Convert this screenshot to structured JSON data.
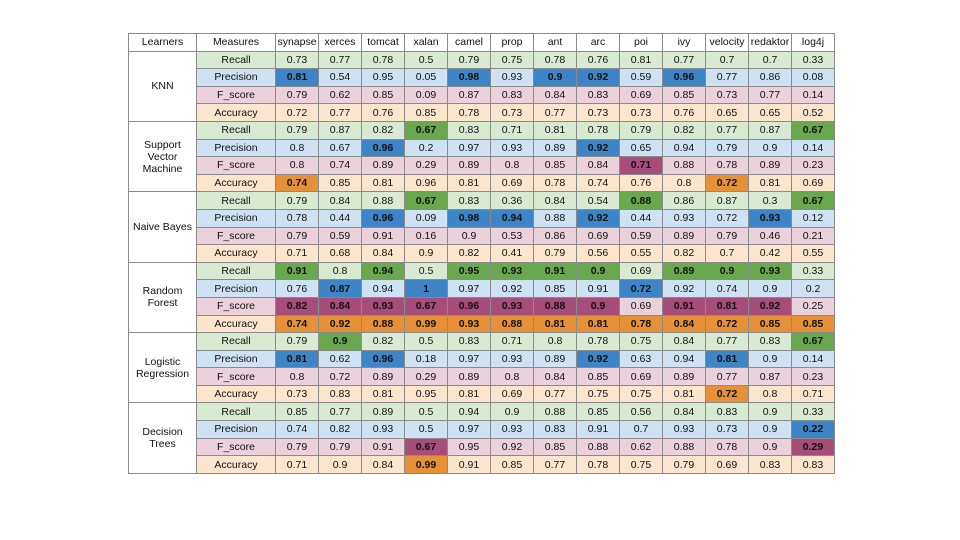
{
  "headers": [
    "Learners",
    "Measures",
    "synapse",
    "xerces",
    "tomcat",
    "xalan",
    "camel",
    "prop",
    "ant",
    "arc",
    "poi",
    "ivy",
    "velocity",
    "redaktor",
    "log4j"
  ],
  "measures": [
    "Recall",
    "Precision",
    "F_score",
    "Accuracy"
  ],
  "row_colors": {
    "Recall": "#d9ead3",
    "Precision": "#cfe2f3",
    "F_score": "#ead1dc",
    "Accuracy": "#fce5cd"
  },
  "highlight_colors": {
    "Recall": "#6aa84f",
    "Precision": "#3d85c6",
    "F_score": "#a64d79",
    "Accuracy": "#e69138"
  },
  "learners": [
    {
      "name": "KNN",
      "rows": [
        {
          "measure": "Recall",
          "values": [
            "0.73",
            "0.77",
            "0.78",
            "0.5",
            "0.79",
            "0.75",
            "0.78",
            "0.76",
            "0.81",
            "0.77",
            "0.7",
            "0.7",
            "0.33"
          ],
          "hl": []
        },
        {
          "measure": "Precision",
          "values": [
            "0.81",
            "0.54",
            "0.95",
            "0.05",
            "0.98",
            "0.93",
            "0.9",
            "0.92",
            "0.59",
            "0.96",
            "0.77",
            "0.86",
            "0.08"
          ],
          "hl": [
            0,
            4,
            6,
            7,
            9
          ]
        },
        {
          "measure": "F_score",
          "values": [
            "0.79",
            "0.62",
            "0.85",
            "0.09",
            "0.87",
            "0.83",
            "0.84",
            "0.83",
            "0.69",
            "0.85",
            "0.73",
            "0.77",
            "0.14"
          ],
          "hl": []
        },
        {
          "measure": "Accuracy",
          "values": [
            "0.72",
            "0.77",
            "0.76",
            "0.85",
            "0.78",
            "0.73",
            "0.77",
            "0.73",
            "0.73",
            "0.76",
            "0.65",
            "0.65",
            "0.52"
          ],
          "hl": []
        }
      ]
    },
    {
      "name": "Support Vector Machine",
      "rows": [
        {
          "measure": "Recall",
          "values": [
            "0.79",
            "0.87",
            "0.82",
            "0.67",
            "0.83",
            "0.71",
            "0.81",
            "0.78",
            "0.79",
            "0.82",
            "0.77",
            "0.87",
            "0.67"
          ],
          "hl": [
            3,
            12
          ]
        },
        {
          "measure": "Precision",
          "values": [
            "0.8",
            "0.67",
            "0.96",
            "0.2",
            "0.97",
            "0.93",
            "0.89",
            "0.92",
            "0.65",
            "0.94",
            "0.79",
            "0.9",
            "0.14"
          ],
          "hl": [
            2,
            7
          ]
        },
        {
          "measure": "F_score",
          "values": [
            "0.8",
            "0.74",
            "0.89",
            "0.29",
            "0.89",
            "0.8",
            "0.85",
            "0.84",
            "0.71",
            "0.88",
            "0.78",
            "0.89",
            "0.23"
          ],
          "hl": [
            8
          ]
        },
        {
          "measure": "Accuracy",
          "values": [
            "0.74",
            "0.85",
            "0.81",
            "0.96",
            "0.81",
            "0.69",
            "0.78",
            "0.74",
            "0.76",
            "0.8",
            "0.72",
            "0.81",
            "0.69"
          ],
          "hl": [
            0,
            10
          ]
        }
      ]
    },
    {
      "name": "Naive Bayes",
      "rows": [
        {
          "measure": "Recall",
          "values": [
            "0.79",
            "0.84",
            "0.88",
            "0.67",
            "0.83",
            "0.36",
            "0.84",
            "0.54",
            "0.88",
            "0.86",
            "0.87",
            "0.3",
            "0.67"
          ],
          "hl": [
            3,
            8,
            12
          ]
        },
        {
          "measure": "Precision",
          "values": [
            "0.78",
            "0.44",
            "0.96",
            "0.09",
            "0.98",
            "0.94",
            "0.88",
            "0.92",
            "0.44",
            "0.93",
            "0.72",
            "0.93",
            "0.12"
          ],
          "hl": [
            2,
            4,
            5,
            7,
            11
          ]
        },
        {
          "measure": "F_score",
          "values": [
            "0.79",
            "0.59",
            "0.91",
            "0.16",
            "0.9",
            "0.53",
            "0.86",
            "0.69",
            "0.59",
            "0.89",
            "0.79",
            "0.46",
            "0.21"
          ],
          "hl": []
        },
        {
          "measure": "Accuracy",
          "values": [
            "0.71",
            "0.68",
            "0.84",
            "0.9",
            "0.82",
            "0.41",
            "0.79",
            "0.56",
            "0.55",
            "0.82",
            "0.7",
            "0.42",
            "0.55"
          ],
          "hl": []
        }
      ]
    },
    {
      "name": "Random Forest",
      "rows": [
        {
          "measure": "Recall",
          "values": [
            "0.91",
            "0.8",
            "0.94",
            "0.5",
            "0.95",
            "0.93",
            "0.91",
            "0.9",
            "0.69",
            "0.89",
            "0.9",
            "0.93",
            "0.33"
          ],
          "hl": [
            0,
            2,
            4,
            5,
            6,
            7,
            9,
            10,
            11
          ]
        },
        {
          "measure": "Precision",
          "values": [
            "0.76",
            "0.87",
            "0.94",
            "1",
            "0.97",
            "0.92",
            "0.85",
            "0.91",
            "0.72",
            "0.92",
            "0.74",
            "0.9",
            "0.2"
          ],
          "hl": [
            1,
            3,
            8
          ]
        },
        {
          "measure": "F_score",
          "values": [
            "0.82",
            "0.84",
            "0.93",
            "0.67",
            "0.96",
            "0.93",
            "0.88",
            "0.9",
            "0.69",
            "0.91",
            "0.81",
            "0.92",
            "0.25"
          ],
          "hl": [
            0,
            1,
            2,
            3,
            4,
            5,
            6,
            7,
            9,
            10,
            11
          ]
        },
        {
          "measure": "Accuracy",
          "values": [
            "0.74",
            "0.92",
            "0.88",
            "0.99",
            "0.93",
            "0.88",
            "0.81",
            "0.81",
            "0.78",
            "0.84",
            "0.72",
            "0.85",
            "0.85"
          ],
          "hl": [
            0,
            1,
            2,
            3,
            4,
            5,
            6,
            7,
            8,
            9,
            10,
            11,
            12
          ]
        }
      ]
    },
    {
      "name": "Logistic Regression",
      "rows": [
        {
          "measure": "Recall",
          "values": [
            "0.79",
            "0.9",
            "0.82",
            "0.5",
            "0.83",
            "0.71",
            "0.8",
            "0.78",
            "0.75",
            "0.84",
            "0.77",
            "0.83",
            "0.67"
          ],
          "hl": [
            1,
            12
          ]
        },
        {
          "measure": "Precision",
          "values": [
            "0.81",
            "0.62",
            "0.96",
            "0.18",
            "0.97",
            "0.93",
            "0.89",
            "0.92",
            "0.63",
            "0.94",
            "0.81",
            "0.9",
            "0.14"
          ],
          "hl": [
            0,
            2,
            7,
            10
          ]
        },
        {
          "measure": "F_score",
          "values": [
            "0.8",
            "0.72",
            "0.89",
            "0.29",
            "0.89",
            "0.8",
            "0.84",
            "0.85",
            "0.69",
            "0.89",
            "0.77",
            "0.87",
            "0.23"
          ],
          "hl": []
        },
        {
          "measure": "Accuracy",
          "values": [
            "0.73",
            "0.83",
            "0.81",
            "0.95",
            "0.81",
            "0.69",
            "0.77",
            "0.75",
            "0.75",
            "0.81",
            "0.72",
            "0.8",
            "0.71"
          ],
          "hl": [
            10
          ]
        }
      ]
    },
    {
      "name": "Decision Trees",
      "rows": [
        {
          "measure": "Recall",
          "values": [
            "0.85",
            "0.77",
            "0.89",
            "0.5",
            "0.94",
            "0.9",
            "0.88",
            "0.85",
            "0.56",
            "0.84",
            "0.83",
            "0.9",
            "0.33"
          ],
          "hl": []
        },
        {
          "measure": "Precision",
          "values": [
            "0.74",
            "0.82",
            "0.93",
            "0.5",
            "0.97",
            "0.93",
            "0.83",
            "0.91",
            "0.7",
            "0.93",
            "0.73",
            "0.9",
            "0.22"
          ],
          "hl": [
            12
          ]
        },
        {
          "measure": "F_score",
          "values": [
            "0.79",
            "0.79",
            "0.91",
            "0.67",
            "0.95",
            "0.92",
            "0.85",
            "0.88",
            "0.62",
            "0.88",
            "0.78",
            "0.9",
            "0.29"
          ],
          "hl": [
            3,
            12
          ]
        },
        {
          "measure": "Accuracy",
          "values": [
            "0.71",
            "0.9",
            "0.84",
            "0.99",
            "0.91",
            "0.85",
            "0.77",
            "0.78",
            "0.75",
            "0.79",
            "0.69",
            "0.83",
            "0.83"
          ],
          "hl": [
            3
          ]
        }
      ]
    }
  ]
}
